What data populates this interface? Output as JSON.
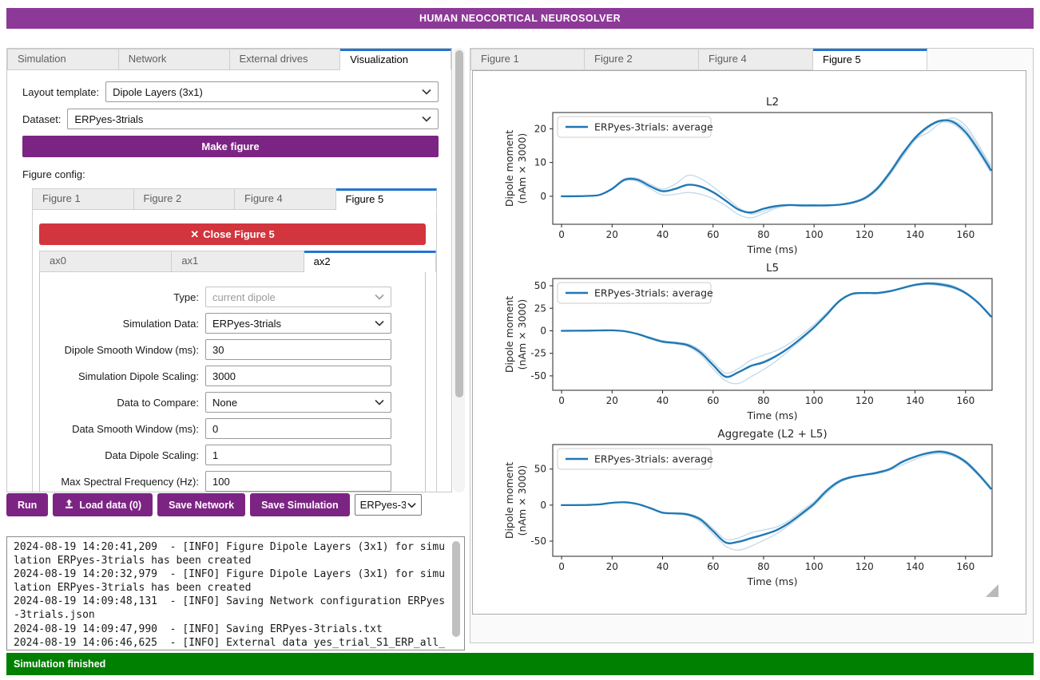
{
  "header": {
    "title": "HUMAN NEOCORTICAL NEUROSOLVER"
  },
  "colors": {
    "header_purple": "#8d3997",
    "button_purple": "#7c2483",
    "danger_red": "#d2353d",
    "status_green": "#008000",
    "active_tab_blue": "#2276d2",
    "line_blue": "#1f77b4",
    "trial_blue_opacity": 0.28
  },
  "icons": {
    "close": "✕",
    "upload": "upload-arrow-tray",
    "chevron": "chevron-down",
    "resize": "corner-triangle"
  },
  "left_panel": {
    "tabs": [
      {
        "label": "Simulation",
        "active": false
      },
      {
        "label": "Network",
        "active": false
      },
      {
        "label": "External drives",
        "active": false
      },
      {
        "label": "Visualization",
        "active": true
      }
    ],
    "layout_template": {
      "label": "Layout template:",
      "value": "Dipole Layers (3x1)"
    },
    "dataset": {
      "label": "Dataset:",
      "value": "ERPyes-3trials"
    },
    "make_figure_label": "Make figure",
    "figure_config_label": "Figure config:",
    "figure_tabs": [
      {
        "label": "Figure 1",
        "active": false
      },
      {
        "label": "Figure 2",
        "active": false
      },
      {
        "label": "Figure 4",
        "active": false
      },
      {
        "label": "Figure 5",
        "active": true
      }
    ],
    "close_figure": {
      "icon": "✕",
      "label": "Close Figure 5"
    },
    "axis_tabs": [
      {
        "label": "ax0",
        "active": false
      },
      {
        "label": "ax1",
        "active": false
      },
      {
        "label": "ax2",
        "active": true
      }
    ],
    "form": {
      "rows": [
        {
          "label": "Type:",
          "value": "current dipole",
          "type": "select",
          "disabled": true
        },
        {
          "label": "Simulation Data:",
          "value": "ERPyes-3trials",
          "type": "select",
          "disabled": false
        },
        {
          "label": "Dipole Smooth Window (ms):",
          "value": "30",
          "type": "input"
        },
        {
          "label": "Simulation Dipole Scaling:",
          "value": "3000",
          "type": "input"
        },
        {
          "label": "Data to Compare:",
          "value": "None",
          "type": "select",
          "disabled": false
        },
        {
          "label": "Data Smooth Window (ms):",
          "value": "0",
          "type": "input"
        },
        {
          "label": "Data Dipole Scaling:",
          "value": "1",
          "type": "input"
        },
        {
          "label": "Max Spectral Frequency (Hz):",
          "value": "100",
          "type": "input"
        }
      ]
    }
  },
  "action_bar": {
    "run_label": "Run",
    "load_data_label": "Load data (0)",
    "save_network_label": "Save Network",
    "save_simulation_label": "Save Simulation",
    "dataset_select_value": "ERPyes-3"
  },
  "log": {
    "lines": [
      "2024-08-19 14:20:41,209  - [INFO] Figure Dipole Layers (3x1) for simu",
      "lation ERPyes-3trials has been created",
      "2024-08-19 14:20:32,979  - [INFO] Figure Dipole Layers (3x1) for simu",
      "lation ERPyes-3trials has been created",
      "2024-08-19 14:09:48,131  - [INFO] Saving Network configuration ERPyes",
      "-3trials.json",
      "2024-08-19 14:09:47,990  - [INFO] Saving ERPyes-3trials.txt",
      "2024-08-19 14:06:46,625  - [INFO] External data yes_trial_S1_ERP_all_"
    ]
  },
  "status_bar": {
    "text": "Simulation finished"
  },
  "right_panel": {
    "tabs": [
      {
        "label": "Figure 1",
        "active": false
      },
      {
        "label": "Figure 2",
        "active": false
      },
      {
        "label": "Figure 4",
        "active": false
      },
      {
        "label": "Figure 5",
        "active": true
      }
    ]
  },
  "chart_data": [
    {
      "type": "line",
      "title": "L2",
      "xlabel": "Time (ms)",
      "ylabel_lines": [
        "Dipole moment",
        "(nAm × 3000)"
      ],
      "legend": "ERPyes-3trials: average",
      "legend_position": "upper left",
      "grid": false,
      "xlim": [
        -3.5,
        170.5
      ],
      "ylim": [
        -8.3,
        24.8
      ],
      "xticks": [
        0,
        20,
        40,
        60,
        80,
        100,
        120,
        140,
        160
      ],
      "yticks": [
        0,
        10,
        20
      ],
      "x": [
        0,
        5,
        10,
        15,
        20,
        25,
        30,
        35,
        40,
        45,
        50,
        55,
        60,
        65,
        70,
        75,
        80,
        85,
        90,
        95,
        100,
        105,
        110,
        115,
        120,
        125,
        130,
        135,
        140,
        145,
        150,
        155,
        160,
        165,
        170
      ],
      "series": [
        {
          "name": "ERPyes-3trials: average",
          "role": "average",
          "values": [
            0,
            0,
            0.1,
            0.4,
            2.2,
            4.9,
            4.9,
            3.0,
            1.5,
            2.2,
            3.4,
            2.9,
            1.2,
            -1.3,
            -3.9,
            -4.8,
            -3.7,
            -2.9,
            -2.6,
            -2.7,
            -2.7,
            -2.7,
            -2.5,
            -1.9,
            -0.6,
            2.3,
            7.0,
            12.5,
            17.3,
            20.6,
            22.4,
            22.0,
            19.0,
            13.8,
            7.8
          ]
        },
        {
          "name": "trial 1",
          "role": "trial",
          "values": [
            0,
            0,
            0.1,
            0.5,
            2.4,
            5.2,
            5.3,
            3.6,
            2.1,
            3.6,
            6.2,
            5.3,
            2.8,
            -0.2,
            -3.3,
            -5.3,
            -4.4,
            -3.2,
            -2.7,
            -2.8,
            -2.8,
            -2.8,
            -2.6,
            -2.0,
            -0.7,
            2.1,
            6.7,
            12.1,
            17.0,
            20.3,
            22.0,
            21.4,
            18.3,
            13.0,
            7.1
          ]
        },
        {
          "name": "trial 2",
          "role": "trial",
          "values": [
            0,
            0,
            0.1,
            0.3,
            2.0,
            4.6,
            4.4,
            2.3,
            0.4,
            0.6,
            1.1,
            0.6,
            -0.7,
            -2.8,
            -5.4,
            -6.4,
            -5.1,
            -3.5,
            -2.8,
            -3.0,
            -3.0,
            -2.9,
            -2.6,
            -2.1,
            -0.9,
            1.8,
            6.3,
            11.6,
            16.6,
            20.1,
            22.3,
            22.5,
            19.9,
            14.7,
            8.6
          ]
        },
        {
          "name": "trial 3",
          "role": "trial",
          "values": [
            0,
            0,
            0.1,
            0.4,
            2.3,
            5.1,
            5.0,
            3.1,
            1.3,
            2.0,
            3.2,
            2.7,
            1.0,
            -1.5,
            -4.1,
            -5.0,
            -3.8,
            -3.0,
            -2.5,
            -2.6,
            -2.6,
            -2.6,
            -2.4,
            -1.7,
            -0.3,
            2.7,
            7.4,
            13.0,
            16.9,
            18.8,
            21.7,
            23.2,
            20.9,
            15.4,
            9.0
          ]
        }
      ]
    },
    {
      "type": "line",
      "title": "L5",
      "xlabel": "Time (ms)",
      "ylabel_lines": [
        "Dipole moment",
        "(nAm × 3000)"
      ],
      "legend": "ERPyes-3trials: average",
      "legend_position": "upper left",
      "grid": false,
      "xlim": [
        -3.5,
        170.5
      ],
      "ylim": [
        -66,
        58
      ],
      "xticks": [
        0,
        20,
        40,
        60,
        80,
        100,
        120,
        140,
        160
      ],
      "yticks": [
        -50,
        -25,
        0,
        25,
        50
      ],
      "x": [
        0,
        5,
        10,
        15,
        20,
        25,
        30,
        35,
        40,
        45,
        50,
        55,
        60,
        65,
        70,
        75,
        80,
        85,
        90,
        95,
        100,
        105,
        110,
        115,
        120,
        125,
        130,
        135,
        140,
        145,
        150,
        155,
        160,
        165,
        170
      ],
      "series": [
        {
          "name": "ERPyes-3trials: average",
          "role": "average",
          "values": [
            0,
            0.1,
            0.2,
            0.4,
            0.5,
            -0.5,
            -3.5,
            -8,
            -12,
            -13.5,
            -16,
            -24,
            -38,
            -51,
            -46,
            -39,
            -35,
            -28,
            -19,
            -8,
            4,
            18,
            33,
            41,
            42,
            42,
            44,
            47.5,
            51,
            52.5,
            51.5,
            48.5,
            42,
            31,
            16
          ]
        },
        {
          "name": "trial 1",
          "role": "trial",
          "values": [
            0,
            0.1,
            0.2,
            0.4,
            0.5,
            -0.6,
            -4,
            -9,
            -13,
            -14.5,
            -17.5,
            -26.5,
            -42,
            -55.5,
            -58.5,
            -51,
            -43,
            -33.5,
            -22,
            -10,
            3,
            17,
            32,
            40,
            41.5,
            41,
            43,
            47,
            50,
            51.5,
            50,
            47,
            41,
            30.5,
            15
          ]
        },
        {
          "name": "trial 2",
          "role": "trial",
          "values": [
            0,
            0.1,
            0.2,
            0.3,
            0.5,
            -0.4,
            -3,
            -7,
            -11,
            -12.5,
            -14.5,
            -21.5,
            -34.5,
            -47,
            -42,
            -32.5,
            -27,
            -22,
            -14.5,
            -4.5,
            7,
            20,
            34,
            40.5,
            41.5,
            42.5,
            44.5,
            48,
            51.5,
            53.5,
            53,
            50,
            43,
            32,
            17.5
          ]
        },
        {
          "name": "trial 3",
          "role": "trial",
          "values": [
            0,
            0.1,
            0.2,
            0.4,
            0.6,
            -0.5,
            -3.3,
            -7.6,
            -11.6,
            -13,
            -15.5,
            -23.5,
            -37,
            -50,
            -45.5,
            -38.5,
            -33.5,
            -27,
            -18.5,
            -7.5,
            4.5,
            18.5,
            33.5,
            41.5,
            42.5,
            42,
            44,
            47.5,
            51,
            52.5,
            51,
            48,
            42.5,
            31,
            16.5
          ]
        }
      ]
    },
    {
      "type": "line",
      "title": "Aggregate (L2 + L5)",
      "xlabel": "Time (ms)",
      "ylabel_lines": [
        "Dipole moment",
        "(nAm × 3000)"
      ],
      "legend": "ERPyes-3trials: average",
      "legend_position": "upper left",
      "grid": false,
      "xlim": [
        -3.5,
        170.5
      ],
      "ylim": [
        -71,
        84
      ],
      "xticks": [
        0,
        20,
        40,
        60,
        80,
        100,
        120,
        140,
        160
      ],
      "yticks": [
        -50,
        0,
        50
      ],
      "x": [
        0,
        5,
        10,
        15,
        20,
        25,
        30,
        35,
        40,
        45,
        50,
        55,
        60,
        65,
        70,
        75,
        80,
        85,
        90,
        95,
        100,
        105,
        110,
        115,
        120,
        125,
        130,
        135,
        140,
        145,
        150,
        155,
        160,
        165,
        170
      ],
      "series": [
        {
          "name": "ERPyes-3trials: average",
          "role": "average",
          "values": [
            0,
            0,
            0.2,
            1,
            3.2,
            4,
            1.5,
            -4,
            -10.5,
            -11.5,
            -13,
            -20,
            -36,
            -52,
            -51,
            -46,
            -41,
            -35,
            -25,
            -12,
            2,
            20,
            33,
            39,
            42,
            45,
            50,
            60,
            67,
            72,
            74,
            70,
            60,
            43,
            23
          ]
        },
        {
          "name": "trial 1",
          "role": "trial",
          "values": [
            0,
            0,
            0.2,
            1,
            3.4,
            4.3,
            1.2,
            -4.6,
            -11,
            -12,
            -14.5,
            -23,
            -40,
            -57,
            -62.5,
            -57,
            -49,
            -40,
            -28,
            -14.5,
            -0.5,
            17,
            31,
            38,
            41,
            43.5,
            48.5,
            56,
            63.5,
            69.5,
            71.5,
            68,
            58,
            41.5,
            21.5
          ]
        },
        {
          "name": "trial 2",
          "role": "trial",
          "values": [
            0,
            0,
            0.2,
            0.9,
            3,
            3.8,
            1.8,
            -3.5,
            -10,
            -11,
            -12,
            -18,
            -32.5,
            -47.5,
            -45.5,
            -38.5,
            -34.5,
            -30.5,
            -21.5,
            -8.5,
            5,
            22,
            34.5,
            40,
            42.5,
            46,
            51,
            61.5,
            68,
            73,
            75.5,
            71.5,
            61.5,
            45,
            25
          ]
        },
        {
          "name": "trial 3",
          "role": "trial",
          "values": [
            0,
            0,
            0.2,
            1,
            3.2,
            4.1,
            1.6,
            -4,
            -10.4,
            -11.4,
            -12.8,
            -19.5,
            -35,
            -51,
            -50,
            -45,
            -40.5,
            -34,
            -24,
            -11,
            2.5,
            19.5,
            33,
            39.5,
            42,
            45.5,
            50.5,
            60.5,
            67.5,
            72.5,
            75,
            71,
            61,
            44,
            23.5
          ]
        }
      ]
    }
  ]
}
